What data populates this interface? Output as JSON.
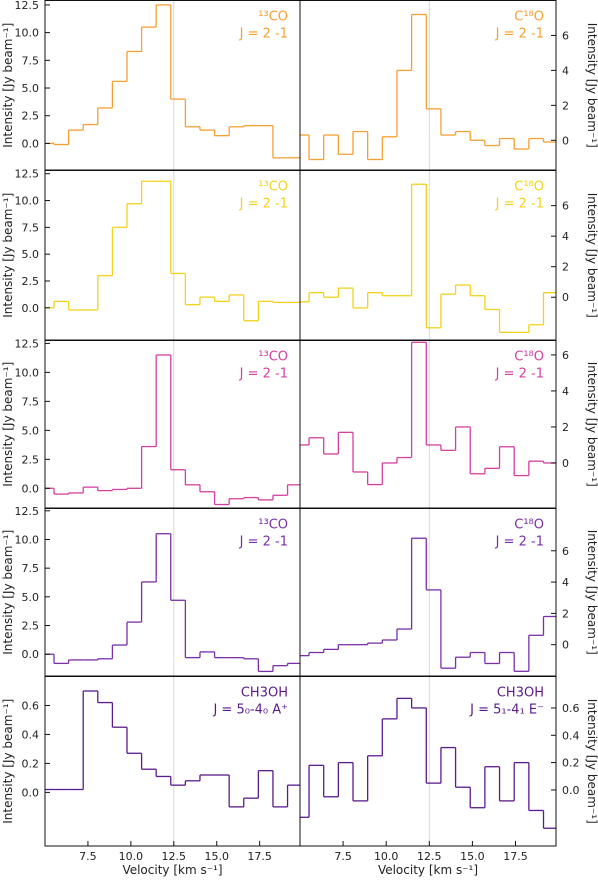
{
  "chart_data": [
    {
      "type": "step",
      "color": "#f5a033",
      "yaxis_side": "left",
      "annotation": [
        "¹³CO",
        "J = 2 -1"
      ],
      "ylabel": "Intensity [Jy beam⁻¹]",
      "vline": 12.5,
      "x": [
        5.1,
        5.95,
        6.8,
        7.65,
        8.5,
        9.35,
        10.2,
        11.05,
        11.9,
        12.75,
        13.6,
        14.45,
        15.3,
        16.15,
        17.0,
        17.85,
        18.7,
        19.55
      ],
      "values": [
        0.0,
        -0.1,
        1.2,
        1.7,
        3.2,
        5.6,
        8.3,
        10.5,
        12.5,
        4.0,
        1.5,
        1.2,
        0.7,
        1.5,
        1.6,
        1.6,
        -1.3,
        -1.3
      ],
      "xlim": [
        5.0,
        19.85
      ],
      "ylim": [
        -2.4,
        12.9
      ],
      "yticks": [
        {
          "value": 0,
          "label": "0.0"
        },
        2.5,
        {
          "value": 5,
          "label": "5.0"
        },
        7.5,
        {
          "value": 10,
          "label": "10.0"
        },
        12.5
      ]
    },
    {
      "type": "step",
      "color": "#f5a033",
      "yaxis_side": "right",
      "annotation": [
        "C¹⁸O",
        "J = 2 -1"
      ],
      "ylabel": "Intensity [Jy beam⁻¹]",
      "vline": 12.5,
      "x": [
        5.1,
        5.95,
        6.8,
        7.65,
        8.5,
        9.35,
        10.2,
        11.05,
        11.9,
        12.75,
        13.6,
        14.45,
        15.3,
        16.15,
        17.0,
        17.85,
        18.7,
        19.55
      ],
      "values": [
        0.3,
        -1.1,
        0.3,
        -0.8,
        0.5,
        -1.1,
        0.2,
        4.0,
        7.2,
        1.8,
        0.3,
        0.5,
        0.0,
        -0.3,
        0.1,
        -0.5,
        0.1,
        -0.1
      ],
      "xlim": [
        5.0,
        19.85
      ],
      "ylim": [
        -1.7,
        8.0
      ],
      "yticks": [
        0,
        2,
        4,
        6
      ]
    },
    {
      "type": "step",
      "color": "#f2d21c",
      "yaxis_side": "left",
      "annotation": [
        "¹³CO",
        "J = 2 -1"
      ],
      "ylabel": "Intensity [Jy beam⁻¹]",
      "vline": 12.5,
      "x": [
        5.1,
        5.95,
        6.8,
        7.65,
        8.5,
        9.35,
        10.2,
        11.05,
        11.9,
        12.75,
        13.6,
        14.45,
        15.3,
        16.15,
        17.0,
        17.85,
        18.7,
        19.55
      ],
      "values": [
        0.0,
        0.6,
        -0.2,
        -0.2,
        3.0,
        7.5,
        9.7,
        11.8,
        11.8,
        3.2,
        0.3,
        1.0,
        0.6,
        1.2,
        -1.2,
        0.6,
        0.5,
        0.5
      ],
      "xlim": [
        5.0,
        19.85
      ],
      "ylim": [
        -3.0,
        12.8
      ],
      "yticks": [
        {
          "value": 0,
          "label": "0.0"
        },
        2.5,
        {
          "value": 5,
          "label": "5.0"
        },
        7.5,
        {
          "value": 10,
          "label": "10.0"
        },
        12.5
      ]
    },
    {
      "type": "step",
      "color": "#f2d21c",
      "yaxis_side": "right",
      "annotation": [
        "C¹⁸O",
        "J = 2 -1"
      ],
      "ylabel": "Intensity [Jy beam⁻¹]",
      "vline": 12.5,
      "x": [
        5.1,
        5.95,
        6.8,
        7.65,
        8.5,
        9.35,
        10.2,
        11.05,
        11.9,
        12.75,
        13.6,
        14.45,
        15.3,
        16.15,
        17.0,
        17.85,
        18.7,
        19.55
      ],
      "values": [
        -0.3,
        0.3,
        0.0,
        0.6,
        -0.7,
        0.3,
        0.1,
        0.1,
        7.4,
        -2.0,
        0.2,
        0.8,
        0.1,
        -0.8,
        -2.3,
        -2.3,
        -1.8,
        0.3
      ],
      "xlim": [
        5.0,
        19.85
      ],
      "ylim": [
        -2.8,
        8.3
      ],
      "yticks": [
        0,
        2,
        4,
        6
      ]
    },
    {
      "type": "step",
      "color": "#d43fa0",
      "yaxis_side": "left",
      "annotation": [
        "¹³CO",
        "J = 2 -1"
      ],
      "ylabel": "Intensity [Jy beam⁻¹]",
      "vline": 12.5,
      "x": [
        5.1,
        5.95,
        6.8,
        7.65,
        8.5,
        9.35,
        10.2,
        11.05,
        11.9,
        12.75,
        13.6,
        14.45,
        15.3,
        16.15,
        17.0,
        17.85,
        18.7,
        19.55
      ],
      "values": [
        0.0,
        -0.5,
        -0.4,
        0.1,
        -0.2,
        -0.1,
        0.0,
        3.6,
        11.5,
        1.6,
        0.3,
        -0.3,
        -1.4,
        -0.9,
        -0.8,
        -1.0,
        -0.6,
        0.3
      ],
      "xlim": [
        5.0,
        19.85
      ],
      "ylim": [
        -1.7,
        12.75
      ],
      "yticks": [
        {
          "value": 0,
          "label": "0.0"
        },
        2.5,
        {
          "value": 5,
          "label": "5.0"
        },
        7.5,
        {
          "value": 10,
          "label": "10.0"
        },
        12.5
      ]
    },
    {
      "type": "step",
      "color": "#d43fa0",
      "yaxis_side": "right",
      "annotation": [
        "C¹⁸O",
        "J = 2 -1"
      ],
      "ylabel": "Intensity [Jy beam⁻¹]",
      "vline": 12.5,
      "x": [
        5.1,
        5.95,
        6.8,
        7.65,
        8.5,
        9.35,
        10.2,
        11.05,
        11.9,
        12.75,
        13.6,
        14.45,
        15.3,
        16.15,
        17.0,
        17.85,
        18.7,
        19.55
      ],
      "values": [
        1.0,
        1.4,
        0.5,
        1.7,
        -0.5,
        -1.2,
        0.0,
        0.3,
        6.7,
        1.0,
        0.7,
        2.0,
        -0.6,
        -0.3,
        0.9,
        -0.7,
        0.1,
        0.0
      ],
      "xlim": [
        5.0,
        19.85
      ],
      "ylim": [
        -2.5,
        6.8
      ],
      "yticks": [
        0,
        2,
        4,
        6
      ]
    },
    {
      "type": "step",
      "color": "#7a2fa8",
      "yaxis_side": "left",
      "annotation": [
        "¹³CO",
        "J = 2 -1"
      ],
      "ylabel": "Intensity [Jy beam⁻¹]",
      "vline": 12.5,
      "x": [
        5.1,
        5.95,
        6.8,
        7.65,
        8.5,
        9.35,
        10.2,
        11.05,
        11.9,
        12.75,
        13.6,
        14.45,
        15.3,
        16.15,
        17.0,
        17.85,
        18.7,
        19.55
      ],
      "values": [
        0.0,
        -0.8,
        -0.5,
        -0.5,
        -0.4,
        0.8,
        2.8,
        6.3,
        10.5,
        4.7,
        -0.3,
        0.2,
        -0.3,
        -0.3,
        -0.4,
        -1.5,
        -1.0,
        -0.8
      ],
      "xlim": [
        5.0,
        19.85
      ],
      "ylim": [
        -1.9,
        12.7
      ],
      "yticks": [
        {
          "value": 0,
          "label": "0.0"
        },
        2.5,
        {
          "value": 5,
          "label": "5.0"
        },
        7.5,
        {
          "value": 10,
          "label": "10.0"
        },
        12.5
      ]
    },
    {
      "type": "step",
      "color": "#7a2fa8",
      "yaxis_side": "right",
      "annotation": [
        "C¹⁸O",
        "J = 2 -1"
      ],
      "ylabel": "Intensity [Jy beam⁻¹]",
      "vline": 12.5,
      "x": [
        5.1,
        5.95,
        6.8,
        7.65,
        8.5,
        9.35,
        10.2,
        11.05,
        11.9,
        12.75,
        13.6,
        14.45,
        15.3,
        16.15,
        17.0,
        17.85,
        18.7,
        19.55
      ],
      "values": [
        -0.7,
        -0.5,
        -0.3,
        0.0,
        0.0,
        0.1,
        0.3,
        1.0,
        6.8,
        3.5,
        -1.5,
        -0.8,
        -0.5,
        -1.2,
        -0.5,
        -1.7,
        0.6,
        1.8
      ],
      "xlim": [
        5.0,
        19.85
      ],
      "ylim": [
        -2.0,
        8.7
      ],
      "yticks": [
        0,
        2,
        4,
        6
      ]
    },
    {
      "type": "step",
      "color": "#5a1b8c",
      "yaxis_side": "left",
      "annotation": [
        "CH3OH",
        "J = 5₀-4₀  A⁺"
      ],
      "ylabel": "Intensity [Jy beam⁻¹]",
      "xlabel": "Velocity [km s⁻¹]",
      "vline": 12.5,
      "x": [
        5.1,
        5.95,
        6.8,
        7.65,
        8.5,
        9.35,
        10.2,
        11.05,
        11.9,
        12.75,
        13.6,
        14.45,
        15.3,
        16.15,
        17.0,
        17.85,
        18.7,
        19.55
      ],
      "values": [
        0.02,
        0.02,
        0.02,
        0.7,
        0.62,
        0.45,
        0.27,
        0.16,
        0.11,
        0.05,
        0.08,
        0.12,
        0.12,
        -0.1,
        -0.04,
        0.15,
        -0.1,
        0.05
      ],
      "xlim": [
        5.0,
        19.85
      ],
      "ylim": [
        -0.37,
        0.8
      ],
      "yticks": [
        {
          "value": 0,
          "label": "0.0"
        },
        0.2,
        0.4,
        0.6
      ],
      "xticks": [
        7.5,
        {
          "value": 10,
          "label": "10.0"
        },
        12.5,
        {
          "value": 15,
          "label": "15.0"
        },
        17.5
      ]
    },
    {
      "type": "step",
      "color": "#5a1b8c",
      "yaxis_side": "right",
      "annotation": [
        "CH3OH",
        "J = 5₁-4₁  E⁻"
      ],
      "ylabel": "Intensity [Jy beam⁻¹]",
      "xlabel": "Velocity [km s⁻¹]",
      "vline": 12.5,
      "x": [
        5.1,
        5.95,
        6.8,
        7.65,
        8.5,
        9.35,
        10.2,
        11.05,
        11.9,
        12.75,
        13.6,
        14.45,
        15.3,
        16.15,
        17.0,
        17.85,
        18.7,
        19.55
      ],
      "values": [
        -0.2,
        0.18,
        -0.05,
        0.2,
        -0.08,
        0.25,
        0.52,
        0.67,
        0.6,
        0.05,
        0.31,
        0.02,
        -0.13,
        0.17,
        -0.08,
        0.2,
        -0.15,
        -0.28
      ],
      "xlim": [
        5.0,
        19.85
      ],
      "ylim": [
        -0.41,
        0.83
      ],
      "yticks": [
        {
          "value": 0,
          "label": "0.0"
        },
        0.2,
        0.4,
        0.6
      ],
      "xticks": [
        7.5,
        {
          "value": 10,
          "label": "10.0"
        },
        12.5,
        {
          "value": 15,
          "label": "15.0"
        },
        17.5
      ]
    }
  ]
}
